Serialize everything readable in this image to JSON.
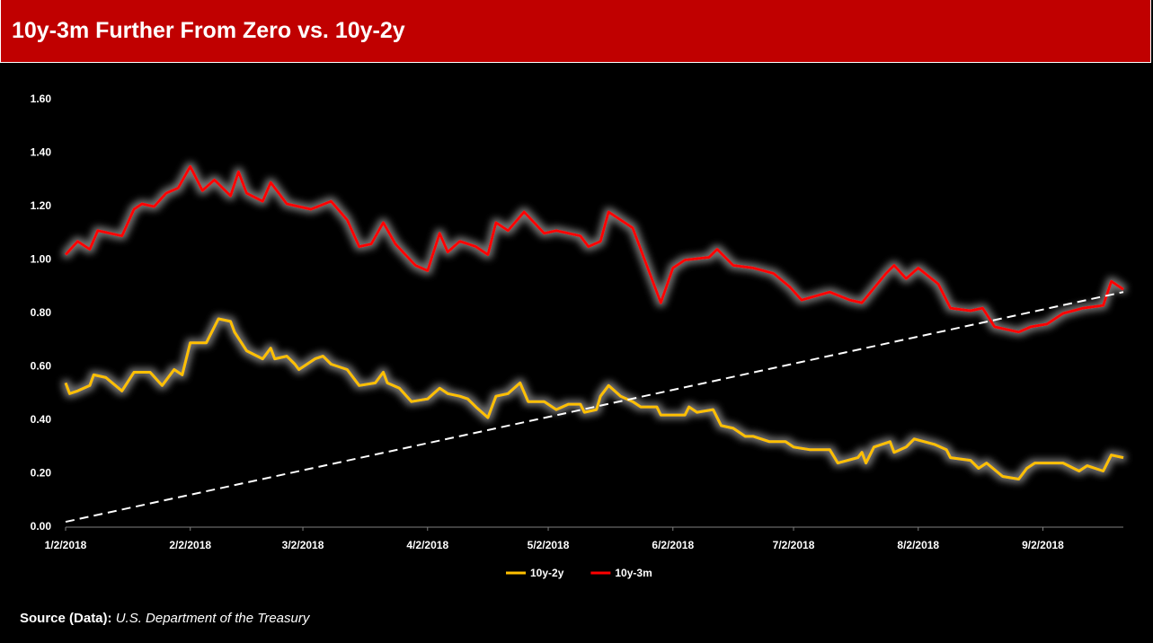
{
  "chart_data": {
    "type": "line",
    "title": "10y-3m Further From Zero vs. 10y-2y",
    "source_label": "Source (Data):",
    "source": "U.S. Department of the Treasury",
    "ylim": [
      0,
      1.6
    ],
    "yticks": [
      {
        "value": 0,
        "label": "0.00"
      },
      {
        "value": 0.2,
        "label": "0.20"
      },
      {
        "value": 0.4,
        "label": "0.40"
      },
      {
        "value": 0.6,
        "label": "0.60"
      },
      {
        "value": 0.8,
        "label": "0.80"
      },
      {
        "value": 1,
        "label": "1.00"
      },
      {
        "value": 1.2,
        "label": "1.20"
      },
      {
        "value": 1.4,
        "label": "1.40"
      },
      {
        "value": 1.6,
        "label": "1.60"
      }
    ],
    "xlim": [
      "2018-01-02",
      "2018-09-22"
    ],
    "xticks": [
      {
        "value": "2018-01-02",
        "label": "1/2/2018"
      },
      {
        "value": "2018-02-02",
        "label": "2/2/2018"
      },
      {
        "value": "2018-03-02",
        "label": "3/2/2018"
      },
      {
        "value": "2018-04-02",
        "label": "4/2/2018"
      },
      {
        "value": "2018-05-02",
        "label": "5/2/2018"
      },
      {
        "value": "2018-06-02",
        "label": "6/2/2018"
      },
      {
        "value": "2018-07-02",
        "label": "7/2/2018"
      },
      {
        "value": "2018-08-02",
        "label": "8/2/2018"
      },
      {
        "value": "2018-09-02",
        "label": "9/2/2018"
      }
    ],
    "series": [
      {
        "name": "10y-2y",
        "color": "#ffc000",
        "x": [
          "2018-01-02",
          "2018-01-03",
          "2018-01-05",
          "2018-01-08",
          "2018-01-09",
          "2018-01-12",
          "2018-01-16",
          "2018-01-19",
          "2018-01-23",
          "2018-01-26",
          "2018-01-29",
          "2018-01-31",
          "2018-02-02",
          "2018-02-06",
          "2018-02-09",
          "2018-02-12",
          "2018-02-13",
          "2018-02-16",
          "2018-02-20",
          "2018-02-22",
          "2018-02-23",
          "2018-02-26",
          "2018-02-28",
          "2018-03-01",
          "2018-03-05",
          "2018-03-07",
          "2018-03-09",
          "2018-03-13",
          "2018-03-16",
          "2018-03-20",
          "2018-03-22",
          "2018-03-23",
          "2018-03-26",
          "2018-03-29",
          "2018-04-02",
          "2018-04-05",
          "2018-04-07",
          "2018-04-10",
          "2018-04-12",
          "2018-04-14",
          "2018-04-17",
          "2018-04-19",
          "2018-04-22",
          "2018-04-25",
          "2018-04-27",
          "2018-05-01",
          "2018-05-04",
          "2018-05-07",
          "2018-05-10",
          "2018-05-11",
          "2018-05-14",
          "2018-05-15",
          "2018-05-17",
          "2018-05-20",
          "2018-05-23",
          "2018-05-25",
          "2018-05-29",
          "2018-05-30",
          "2018-06-05",
          "2018-06-06",
          "2018-06-08",
          "2018-06-12",
          "2018-06-14",
          "2018-06-17",
          "2018-06-20",
          "2018-06-22",
          "2018-06-26",
          "2018-06-30",
          "2018-07-02",
          "2018-07-06",
          "2018-07-11",
          "2018-07-13",
          "2018-07-18",
          "2018-07-19",
          "2018-07-20",
          "2018-07-22",
          "2018-07-26",
          "2018-07-27",
          "2018-07-30",
          "2018-08-01",
          "2018-08-06",
          "2018-08-09",
          "2018-08-10",
          "2018-08-15",
          "2018-08-17",
          "2018-08-19",
          "2018-08-23",
          "2018-08-27",
          "2018-08-29",
          "2018-08-31",
          "2018-09-07",
          "2018-09-11",
          "2018-09-13",
          "2018-09-17",
          "2018-09-19",
          "2018-09-22"
        ],
        "values": [
          0.54,
          0.5,
          0.51,
          0.53,
          0.57,
          0.56,
          0.51,
          0.58,
          0.58,
          0.53,
          0.59,
          0.57,
          0.69,
          0.69,
          0.78,
          0.77,
          0.73,
          0.66,
          0.63,
          0.67,
          0.63,
          0.64,
          0.61,
          0.59,
          0.63,
          0.64,
          0.61,
          0.59,
          0.53,
          0.54,
          0.58,
          0.54,
          0.52,
          0.47,
          0.48,
          0.52,
          0.5,
          0.49,
          0.48,
          0.45,
          0.41,
          0.49,
          0.5,
          0.54,
          0.47,
          0.47,
          0.44,
          0.46,
          0.46,
          0.43,
          0.44,
          0.49,
          0.53,
          0.49,
          0.47,
          0.45,
          0.45,
          0.42,
          0.42,
          0.45,
          0.43,
          0.44,
          0.38,
          0.37,
          0.34,
          0.34,
          0.32,
          0.32,
          0.3,
          0.29,
          0.29,
          0.24,
          0.26,
          0.28,
          0.24,
          0.3,
          0.32,
          0.28,
          0.3,
          0.33,
          0.31,
          0.29,
          0.26,
          0.25,
          0.22,
          0.24,
          0.19,
          0.18,
          0.22,
          0.24,
          0.24,
          0.21,
          0.23,
          0.21,
          0.27,
          0.26
        ]
      },
      {
        "name": "10y-3m",
        "color": "#ff0000",
        "x": [
          "2018-01-02",
          "2018-01-05",
          "2018-01-08",
          "2018-01-10",
          "2018-01-16",
          "2018-01-19",
          "2018-01-21",
          "2018-01-24",
          "2018-01-27",
          "2018-01-30",
          "2018-02-02",
          "2018-02-05",
          "2018-02-08",
          "2018-02-12",
          "2018-02-14",
          "2018-02-16",
          "2018-02-20",
          "2018-02-22",
          "2018-02-26",
          "2018-03-04",
          "2018-03-09",
          "2018-03-13",
          "2018-03-16",
          "2018-03-19",
          "2018-03-22",
          "2018-03-25",
          "2018-03-30",
          "2018-04-02",
          "2018-04-05",
          "2018-04-07",
          "2018-04-10",
          "2018-04-14",
          "2018-04-17",
          "2018-04-19",
          "2018-04-22",
          "2018-04-26",
          "2018-05-01",
          "2018-05-04",
          "2018-05-10",
          "2018-05-12",
          "2018-05-15",
          "2018-05-17",
          "2018-05-23",
          "2018-05-26",
          "2018-05-30",
          "2018-06-02",
          "2018-06-05",
          "2018-06-11",
          "2018-06-13",
          "2018-06-17",
          "2018-06-22",
          "2018-06-27",
          "2018-07-01",
          "2018-07-04",
          "2018-07-11",
          "2018-07-16",
          "2018-07-19",
          "2018-07-25",
          "2018-07-27",
          "2018-07-30",
          "2018-08-02",
          "2018-08-07",
          "2018-08-10",
          "2018-08-15",
          "2018-08-18",
          "2018-08-21",
          "2018-08-27",
          "2018-08-30",
          "2018-09-03",
          "2018-09-07",
          "2018-09-12",
          "2018-09-17",
          "2018-09-19",
          "2018-09-22"
        ],
        "values": [
          1.02,
          1.07,
          1.04,
          1.11,
          1.09,
          1.19,
          1.21,
          1.2,
          1.25,
          1.27,
          1.35,
          1.26,
          1.3,
          1.24,
          1.33,
          1.25,
          1.22,
          1.29,
          1.21,
          1.19,
          1.22,
          1.15,
          1.05,
          1.06,
          1.14,
          1.06,
          0.98,
          0.96,
          1.1,
          1.03,
          1.07,
          1.05,
          1.02,
          1.14,
          1.11,
          1.18,
          1.1,
          1.11,
          1.09,
          1.05,
          1.07,
          1.18,
          1.12,
          1.0,
          0.84,
          0.97,
          1.0,
          1.01,
          1.04,
          0.98,
          0.97,
          0.95,
          0.9,
          0.85,
          0.88,
          0.85,
          0.84,
          0.95,
          0.98,
          0.93,
          0.97,
          0.91,
          0.82,
          0.81,
          0.82,
          0.75,
          0.73,
          0.75,
          0.76,
          0.8,
          0.82,
          0.83,
          0.92,
          0.89
        ]
      }
    ],
    "trendline": {
      "x": [
        "2018-01-02",
        "2018-09-22"
      ],
      "values": [
        0.02,
        0.88
      ],
      "color": "#ffffff"
    }
  }
}
